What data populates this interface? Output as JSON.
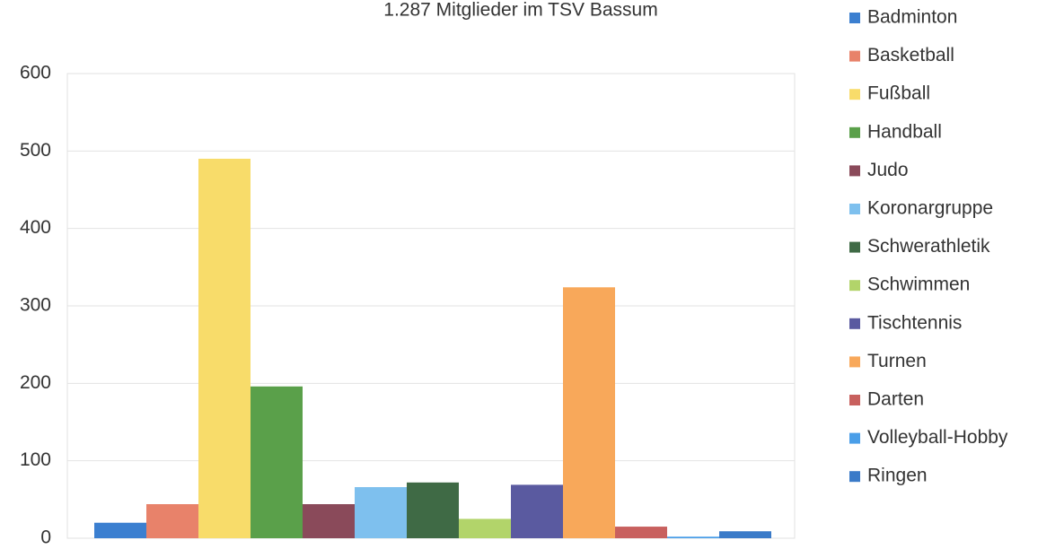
{
  "chart_data": {
    "type": "bar",
    "title": "1.287 Mitglieder im TSV Bassum",
    "categories": [
      null
    ],
    "series": [
      {
        "name": "Badminton",
        "color": "#3b7fd0",
        "values": [
          20
        ]
      },
      {
        "name": "Basketball",
        "color": "#e8826a",
        "values": [
          44
        ]
      },
      {
        "name": "Fußball",
        "color": "#f8dc6a",
        "values": [
          490
        ]
      },
      {
        "name": "Handball",
        "color": "#5aa04a",
        "values": [
          196
        ]
      },
      {
        "name": "Judo",
        "color": "#8a4a5a",
        "values": [
          44
        ]
      },
      {
        "name": "Koronargruppe",
        "color": "#7ec0ee",
        "values": [
          66
        ]
      },
      {
        "name": "Schwerathletik",
        "color": "#3f6a45",
        "values": [
          72
        ]
      },
      {
        "name": "Schwimmen",
        "color": "#b2d46a",
        "values": [
          25
        ]
      },
      {
        "name": "Tischtennis",
        "color": "#5a5aa0",
        "values": [
          69
        ]
      },
      {
        "name": "Turnen",
        "color": "#f8a85a",
        "values": [
          324
        ]
      },
      {
        "name": "Darten",
        "color": "#c8605e",
        "values": [
          15
        ]
      },
      {
        "name": "Volleyball-Hobby",
        "color": "#4a9ee8",
        "values": [
          2
        ]
      },
      {
        "name": "Ringen",
        "color": "#3a7ac8",
        "values": [
          9
        ]
      }
    ],
    "ylim": [
      0,
      600
    ],
    "yticks": [
      0,
      100,
      200,
      300,
      400,
      500,
      600
    ],
    "grid": true,
    "legend": "right"
  }
}
